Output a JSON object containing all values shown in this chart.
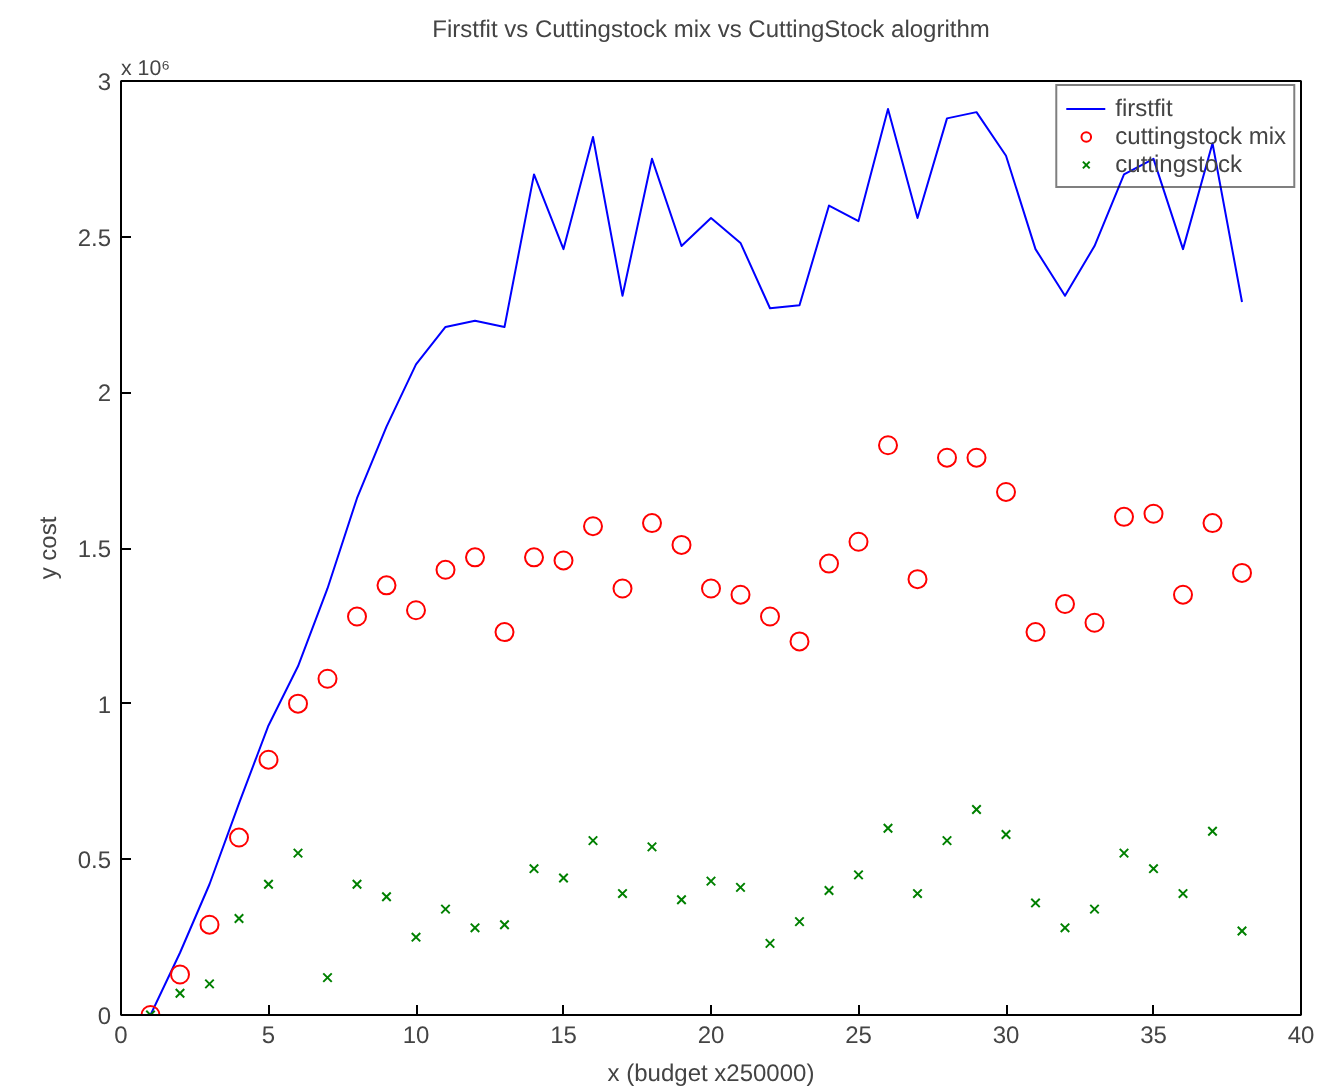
{
  "chart_data": {
    "type": "line",
    "title": "Firstfit vs Cuttingstock mix vs CuttingStock alogrithm",
    "xlabel": "x (budget x250000)",
    "ylabel": "y cost",
    "annotations": [
      "x 10⁶"
    ],
    "x": [
      1,
      2,
      3,
      4,
      5,
      6,
      7,
      8,
      9,
      10,
      11,
      12,
      13,
      14,
      15,
      16,
      17,
      18,
      19,
      20,
      21,
      22,
      23,
      24,
      25,
      26,
      27,
      28,
      29,
      30,
      31,
      32,
      33,
      34,
      35,
      36,
      37,
      38
    ],
    "series": [
      {
        "name": "firstfit",
        "marker": "none",
        "color": "#0000ff",
        "values": [
          0,
          0.2,
          0.42,
          0.68,
          0.93,
          1.12,
          1.37,
          1.66,
          1.89,
          2.09,
          2.21,
          2.23,
          2.21,
          2.7,
          2.46,
          2.82,
          2.31,
          2.75,
          2.47,
          2.56,
          2.48,
          2.27,
          2.28,
          2.6,
          2.55,
          2.91,
          2.56,
          2.88,
          2.9,
          2.76,
          2.46,
          2.31,
          2.47,
          2.7,
          2.75,
          2.46,
          2.8,
          2.29
        ]
      },
      {
        "name": "cuttingstock mix",
        "type": "scatter",
        "marker": "circle",
        "color": "#ff0000",
        "values": [
          0,
          0.13,
          0.29,
          0.57,
          0.82,
          1.0,
          1.08,
          1.28,
          1.38,
          1.3,
          1.43,
          1.47,
          1.23,
          1.47,
          1.46,
          1.57,
          1.37,
          1.58,
          1.51,
          1.37,
          1.35,
          1.28,
          1.2,
          1.45,
          1.52,
          1.83,
          1.4,
          1.79,
          1.79,
          1.68,
          1.23,
          1.32,
          1.26,
          1.6,
          1.61,
          1.35,
          1.58,
          1.42
        ]
      },
      {
        "name": "cuttingstock",
        "type": "scatter",
        "marker": "cross",
        "color": "#008000",
        "values": [
          0,
          0.07,
          0.1,
          0.31,
          0.42,
          0.52,
          0.12,
          0.42,
          0.38,
          0.25,
          0.34,
          0.28,
          0.29,
          0.47,
          0.44,
          0.56,
          0.39,
          0.54,
          0.37,
          0.43,
          0.41,
          0.23,
          0.3,
          0.4,
          0.45,
          0.6,
          0.39,
          0.56,
          0.66,
          0.58,
          0.36,
          0.28,
          0.34,
          0.52,
          0.47,
          0.39,
          0.59,
          0.27
        ]
      }
    ],
    "xlim": [
      0,
      40
    ],
    "xticks": [
      0,
      5,
      10,
      15,
      20,
      25,
      30,
      35,
      40
    ],
    "ylim": [
      0,
      3
    ],
    "yticks": [
      0,
      0.5,
      1,
      1.5,
      2,
      2.5,
      3
    ],
    "grid": false,
    "legend": "top right"
  }
}
